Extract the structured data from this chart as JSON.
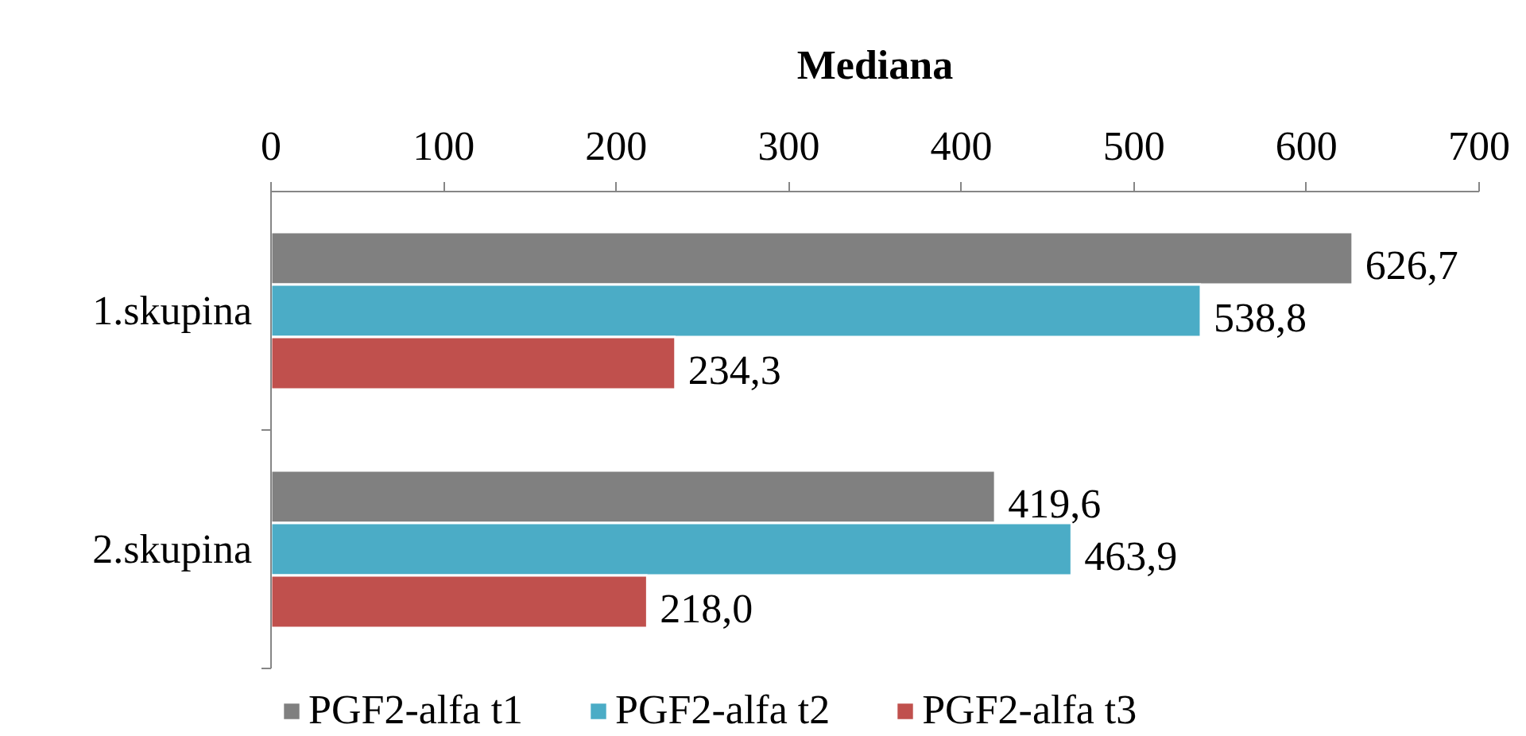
{
  "chart_data": {
    "type": "bar",
    "orientation": "horizontal",
    "title": "Mediana",
    "categories": [
      "1.skupina",
      "2.skupina"
    ],
    "series": [
      {
        "name": "PGF2-alfa t1",
        "color": "#808080",
        "values": [
          626.7,
          419.6
        ],
        "value_labels": [
          "626,7",
          "419,6"
        ]
      },
      {
        "name": "PGF2-alfa t2",
        "color": "#4bacc6",
        "values": [
          538.8,
          463.9
        ],
        "value_labels": [
          "538,8",
          "463,9"
        ]
      },
      {
        "name": "PGF2-alfa t3",
        "color": "#c0504d",
        "values": [
          234.3,
          218.0
        ],
        "value_labels": [
          "234,3",
          "218,0"
        ]
      }
    ],
    "xlim": [
      0,
      700
    ],
    "xticks": [
      0,
      100,
      200,
      300,
      400,
      500,
      600,
      700
    ],
    "legend": "bottom",
    "grid": false
  }
}
